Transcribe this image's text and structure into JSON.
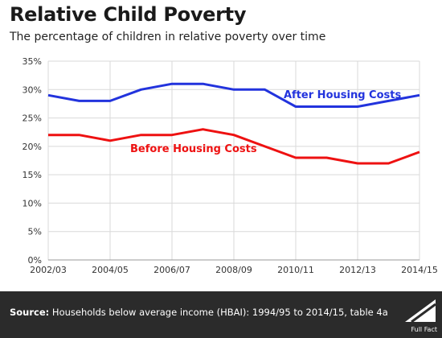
{
  "title": "Relative Child Poverty",
  "subtitle": "The percentage of children in relative poverty over time",
  "chart_data": {
    "type": "line",
    "x": [
      "2002/03",
      "2003/04",
      "2004/05",
      "2005/06",
      "2006/07",
      "2007/08",
      "2008/09",
      "2009/10",
      "2010/11",
      "2011/12",
      "2012/13",
      "2013/14",
      "2014/15"
    ],
    "x_tick_labels": [
      "2002/03",
      "2004/05",
      "2006/07",
      "2008/09",
      "2010/11",
      "2012/13",
      "2014/15"
    ],
    "y_tick_labels": [
      "0%",
      "5%",
      "10%",
      "15%",
      "20%",
      "25%",
      "30%",
      "35%"
    ],
    "ylim": [
      0,
      35
    ],
    "grid": true,
    "series": [
      {
        "name": "After Housing Costs",
        "color": "#2233dd",
        "values": [
          29,
          28,
          28,
          30,
          31,
          31,
          30,
          30,
          27,
          27,
          27,
          28,
          29
        ]
      },
      {
        "name": "Before Housing Costs",
        "color": "#ee1111",
        "values": [
          22,
          22,
          21,
          22,
          22,
          23,
          22,
          20,
          18,
          18,
          17,
          17,
          19
        ]
      }
    ]
  },
  "footer": {
    "source_label": "Source:",
    "source_text": "Households below average income (HBAI): 1994/95 to 2014/15, table 4a",
    "logo_text": "Full Fact"
  }
}
